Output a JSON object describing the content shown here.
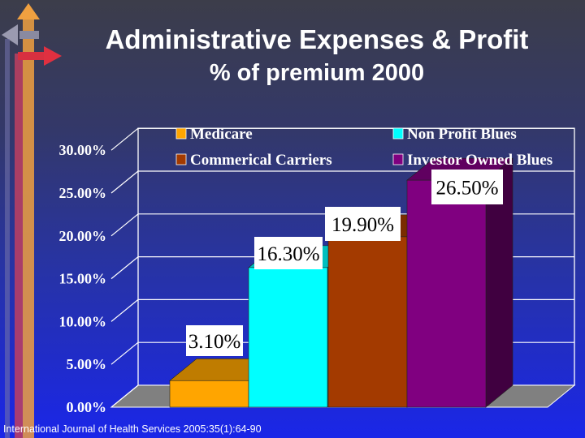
{
  "title": "Administrative Expenses & Profit",
  "subtitle": "% of premium 2000",
  "source": "International Journal of Health Services 2005:35(1):64-90",
  "chart_data": {
    "type": "bar",
    "categories": [
      "Medicare",
      "Non Profit Blues",
      "Commerical Carriers",
      "Investor Owned Blues"
    ],
    "values": [
      3.1,
      16.3,
      19.9,
      26.5
    ],
    "data_labels": [
      "3.10%",
      "16.30%",
      "19.90%",
      "26.50%"
    ],
    "ylim": [
      0,
      30
    ],
    "yticks": [
      "0.00%",
      "5.00%",
      "10.00%",
      "15.00%",
      "20.00%",
      "25.00%",
      "30.00%"
    ],
    "legend": [
      {
        "name": "Medicare",
        "color": "#ffa500"
      },
      {
        "name": "Non Profit Blues",
        "color": "#00ffff"
      },
      {
        "name": "Commerical Carriers",
        "color": "#a33a00"
      },
      {
        "name": "Investor Owned Blues",
        "color": "#800080"
      }
    ],
    "legend_position": "top",
    "grid": true,
    "style": "3d"
  }
}
